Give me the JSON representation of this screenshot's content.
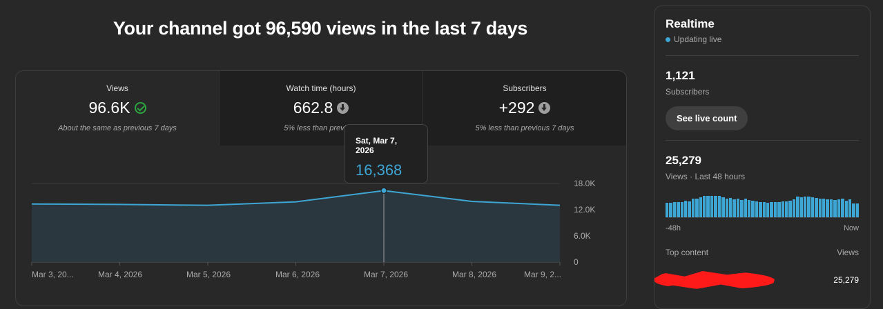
{
  "headline": "Your channel got 96,590 views in the last 7 days",
  "tabs": [
    {
      "label": "Views",
      "value": "96.6K",
      "icon": "check-circle-icon",
      "note": "About the same as previous 7 days"
    },
    {
      "label": "Watch time (hours)",
      "value": "662.8",
      "icon": "arrow-down-circle-icon",
      "note": "5% less than previous"
    },
    {
      "label": "Subscribers",
      "value": "+292",
      "icon": "arrow-down-circle-icon",
      "note": "5% less than previous 7 days"
    }
  ],
  "tooltip": {
    "date": "Sat, Mar 7, 2026",
    "value": "16,368"
  },
  "colors": {
    "accent": "#3ea6d4",
    "positive": "#2ba640",
    "background": "#282828"
  },
  "chart_data": {
    "type": "area",
    "x": [
      "Mar 3, 20...",
      "Mar 4, 2026",
      "Mar 5, 2026",
      "Mar 6, 2026",
      "Mar 7, 2026",
      "Mar 8, 2026",
      "Mar 9, 2..."
    ],
    "values": [
      13300,
      13200,
      13000,
      13800,
      16368,
      13900,
      13000
    ],
    "y_ticks": [
      "18.0K",
      "12.0K",
      "6.0K",
      "0"
    ],
    "ylim": [
      0,
      18000
    ],
    "highlight_index": 4,
    "grid": true
  },
  "realtime": {
    "title": "Realtime",
    "status": "Updating live",
    "subscribers_value": "1,121",
    "subscribers_label": "Subscribers",
    "live_button": "See live count",
    "views_value": "25,279",
    "views_label": "Views · Last 48 hours",
    "bars": [
      0.62,
      0.62,
      0.64,
      0.66,
      0.66,
      0.7,
      0.68,
      0.8,
      0.78,
      0.86,
      0.9,
      0.92,
      0.92,
      0.92,
      0.9,
      0.84,
      0.8,
      0.82,
      0.76,
      0.78,
      0.74,
      0.8,
      0.74,
      0.7,
      0.68,
      0.66,
      0.64,
      0.62,
      0.64,
      0.66,
      0.66,
      0.68,
      0.68,
      0.72,
      0.76,
      0.88,
      0.86,
      0.88,
      0.88,
      0.86,
      0.82,
      0.8,
      0.8,
      0.76,
      0.76,
      0.74,
      0.76,
      0.8,
      0.7,
      0.76,
      0.6,
      0.6
    ],
    "axis_start": "-48h",
    "axis_end": "Now",
    "top_content_label": "Top content",
    "top_content_views_label": "Views",
    "top_item_views": "25,279"
  }
}
